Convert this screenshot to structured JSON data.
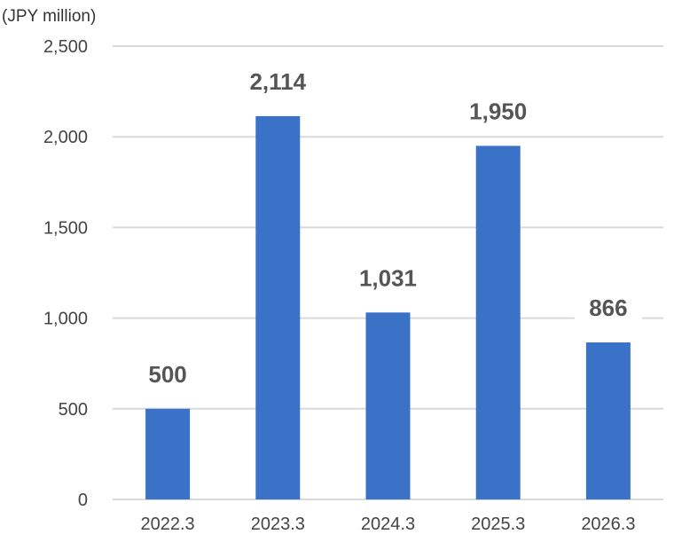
{
  "chart_data": {
    "type": "bar",
    "unit_label": "(JPY million)",
    "categories": [
      "2022.3",
      "2023.3",
      "2024.3",
      "2025.3",
      "2026.3"
    ],
    "values": [
      500,
      2114,
      1031,
      1950,
      866
    ],
    "data_labels": [
      "500",
      "2,114",
      "1,031",
      "1,950",
      "866"
    ],
    "yticks": [
      0,
      500,
      1000,
      1500,
      2000,
      2500
    ],
    "ytick_labels": [
      "0",
      "500",
      "1,000",
      "1,500",
      "2,000",
      "2,500"
    ],
    "ylim": [
      0,
      2500
    ],
    "grid": true,
    "legend": "none",
    "bar_color": "#3a72c8"
  }
}
